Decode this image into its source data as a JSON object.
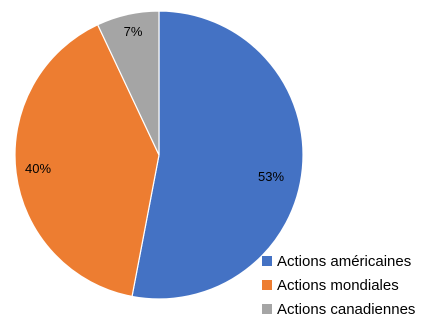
{
  "chart_data": {
    "type": "pie",
    "title": "",
    "slices": [
      {
        "label": "Actions américaines",
        "value": 53,
        "display": "53%",
        "color": "#4472C4"
      },
      {
        "label": "Actions mondiales",
        "value": 40,
        "display": "40%",
        "color": "#ED7D31"
      },
      {
        "label": "Actions canadiennes",
        "value": 7,
        "display": "7%",
        "color": "#A5A5A5"
      }
    ],
    "start_angle": "12 o'clock",
    "direction": "clockwise",
    "legend_position": "bottom-right"
  }
}
